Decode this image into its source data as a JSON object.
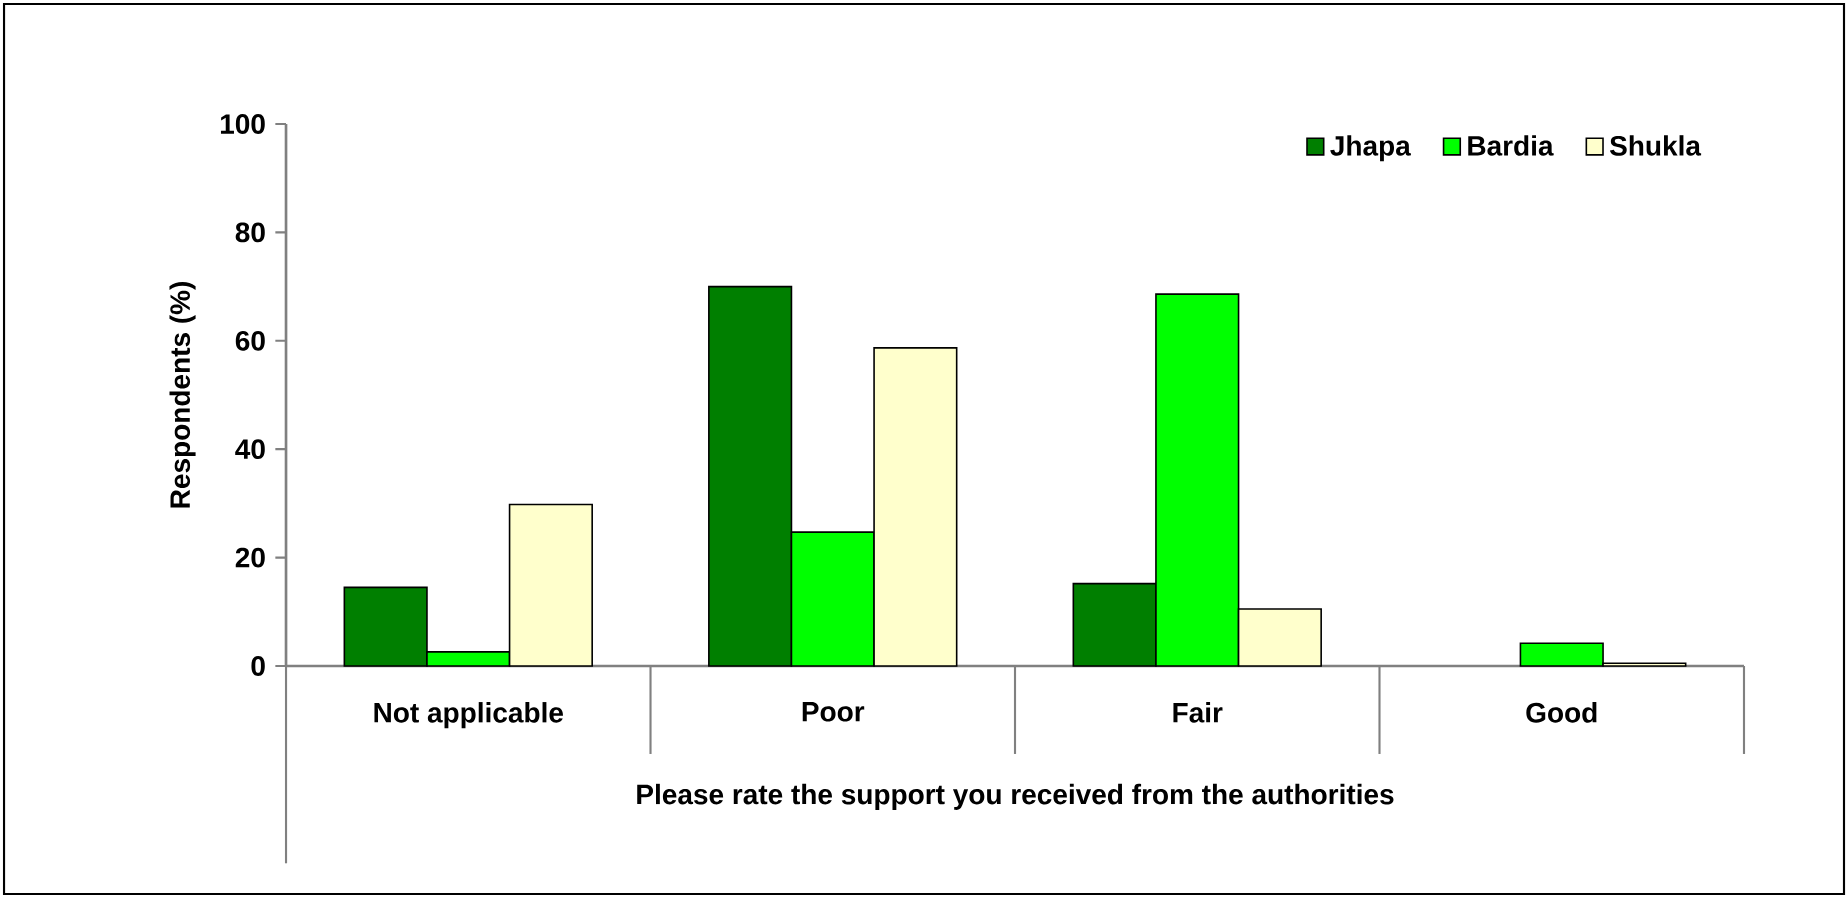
{
  "chart_data": {
    "type": "bar",
    "xlabel": "Please rate the support you received from the authorities",
    "ylabel": "Respondents (%)",
    "categories": [
      "Not applicable",
      "Poor",
      "Fair",
      "Good"
    ],
    "series": [
      {
        "name": "Jhapa",
        "color": "#007f00",
        "values": [
          14.5,
          70,
          15.2,
          null
        ]
      },
      {
        "name": "Bardia",
        "color": "#00ff00",
        "values": [
          2.6,
          24.7,
          68.6,
          4.2
        ]
      },
      {
        "name": "Shukla",
        "color": "#ffffcc",
        "values": [
          29.8,
          58.7,
          10.5,
          0.5
        ]
      }
    ],
    "ylim": [
      0,
      100
    ],
    "yticks": [
      0,
      20,
      40,
      60,
      80,
      100
    ],
    "legend": "top right"
  }
}
